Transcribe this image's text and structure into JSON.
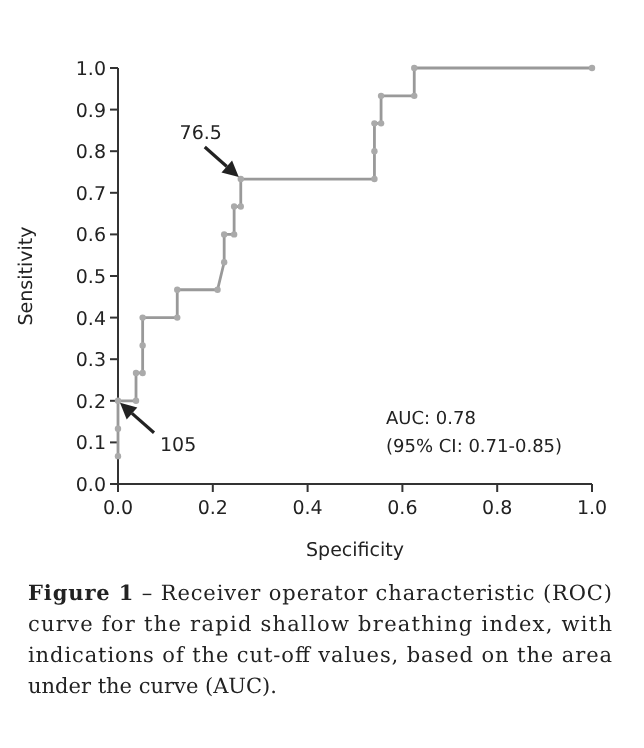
{
  "chart_data": {
    "type": "line",
    "xlabel": "Specificity",
    "ylabel": "Sensitivity",
    "x": [
      0,
      0,
      0,
      0.038,
      0.038,
      0.052,
      0.052,
      0.052,
      0.125,
      0.125,
      0.21,
      0.224,
      0.224,
      0.245,
      0.245,
      0.259,
      0.259,
      0.541,
      0.541,
      0.541,
      0.555,
      0.555,
      0.625,
      0.625,
      1.0
    ],
    "series": [
      {
        "color": "#999999",
        "values": [
          0.067,
          0.133,
          0.2,
          0.2,
          0.267,
          0.267,
          0.333,
          0.4,
          0.4,
          0.467,
          0.467,
          0.533,
          0.6,
          0.6,
          0.667,
          0.667,
          0.733,
          0.733,
          0.8,
          0.867,
          0.867,
          0.933,
          0.933,
          1.0,
          1.0
        ]
      }
    ],
    "marker": "circle",
    "line_style": "solid",
    "grid": false,
    "xlim": [
      0,
      1
    ],
    "ylim": [
      0,
      1
    ],
    "xticks": [
      {
        "value": 0,
        "label": "0.0"
      },
      0.2,
      0.4,
      0.6,
      0.8,
      {
        "value": 1,
        "label": "1.0"
      }
    ],
    "yticks": [
      {
        "value": 0,
        "label": "0.0"
      },
      0.1,
      0.2,
      0.3,
      0.4,
      0.5,
      0.6,
      0.7,
      0.8,
      0.9,
      {
        "value": 1,
        "label": "1.0"
      }
    ],
    "annotations": [
      {
        "text": "76.5",
        "x": 0.259,
        "y": 0.733
      },
      {
        "text": "105",
        "x": 0,
        "y": 0.2
      },
      "AUC: 0.78",
      "(95% CI: 0.71-0.85)",
      "Figure 1 – Receiver operator characteristic (ROC) curve for the rapid shallow breathing index, with indications of the cut-off values, based on the area under the curve (AUC)."
    ]
  }
}
